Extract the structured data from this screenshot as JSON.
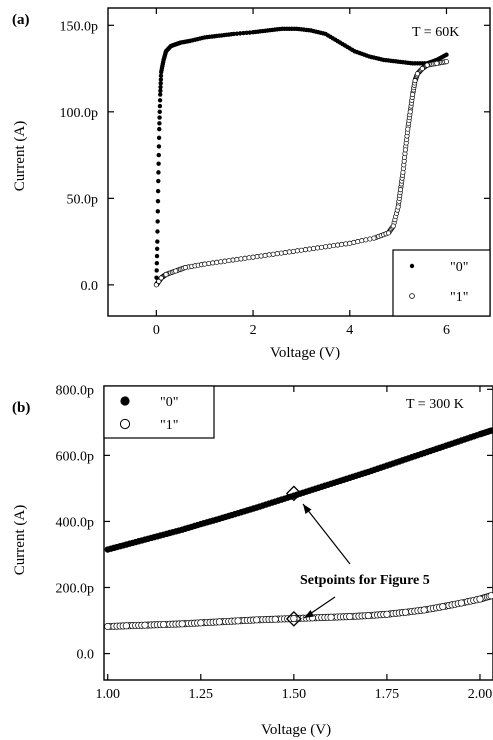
{
  "chart_data": [
    {
      "type": "scatter",
      "panel_label": "(a)",
      "annotation": "T = 60K",
      "xlabel": "Voltage (V)",
      "ylabel": "Current (A)",
      "xlim": [
        -1.0,
        6.9
      ],
      "ylim": [
        -18,
        160
      ],
      "x_ticks": [
        0,
        2,
        4,
        6
      ],
      "x_tick_labels": [
        "0",
        "2",
        "4",
        "6"
      ],
      "y_ticks": [
        0,
        50,
        100,
        150
      ],
      "y_tick_labels": [
        "0.0",
        "50.0p",
        "100.0p",
        "150.0p"
      ],
      "grid": false,
      "legend_position": "bottom-right",
      "series": [
        {
          "name": "\"0\"",
          "marker": "filled",
          "x": [
            0.0,
            0.02,
            0.04,
            0.06,
            0.08,
            0.1,
            0.15,
            0.2,
            0.3,
            0.4,
            0.5,
            0.7,
            1.0,
            1.3,
            1.6,
            2.0,
            2.3,
            2.6,
            2.9,
            3.2,
            3.5,
            3.8,
            4.1,
            4.4,
            4.7,
            5.0,
            5.3,
            5.6,
            5.8,
            6.0
          ],
          "y": [
            0,
            25,
            60,
            90,
            110,
            123,
            130,
            135,
            138,
            139,
            140,
            141,
            143,
            144,
            145,
            146,
            147,
            148,
            148,
            147,
            145,
            140,
            135,
            132,
            130,
            129,
            128,
            128,
            130,
            133
          ]
        },
        {
          "name": "\"1\"",
          "marker": "open",
          "x": [
            0.0,
            0.05,
            0.1,
            0.2,
            0.4,
            0.6,
            1.0,
            1.5,
            2.0,
            2.5,
            3.0,
            3.5,
            4.0,
            4.5,
            4.8,
            4.9,
            5.0,
            5.05,
            5.1,
            5.15,
            5.2,
            5.25,
            5.3,
            5.35,
            5.4,
            5.5,
            5.6,
            5.8,
            6.0
          ],
          "y": [
            0,
            2,
            4,
            6,
            8,
            10,
            12,
            14,
            16,
            18,
            20,
            22,
            24,
            27,
            30,
            34,
            45,
            55,
            65,
            78,
            90,
            100,
            110,
            118,
            122,
            125,
            127,
            128,
            129
          ]
        }
      ]
    },
    {
      "type": "scatter",
      "panel_label": "(b)",
      "annotation": "T = 300 K",
      "callout": "Setpoints for Figure 5",
      "xlabel": "Voltage (V)",
      "ylabel": "Current (A)",
      "xlim": [
        0.99,
        2.035
      ],
      "ylim": [
        -80,
        810
      ],
      "x_ticks": [
        1.0,
        1.25,
        1.5,
        1.75,
        2.0
      ],
      "x_tick_labels": [
        "1.00",
        "1.25",
        "1.50",
        "1.75",
        "2.00"
      ],
      "y_ticks": [
        0,
        200,
        400,
        600,
        800
      ],
      "y_tick_labels": [
        "0.0",
        "200.0p",
        "400.0p",
        "600.0p",
        "800.0p"
      ],
      "grid": false,
      "legend_position": "top-left",
      "series": [
        {
          "name": "\"0\"",
          "marker": "filled",
          "x": [
            1.0,
            1.05,
            1.1,
            1.15,
            1.2,
            1.25,
            1.3,
            1.35,
            1.4,
            1.45,
            1.5,
            1.55,
            1.6,
            1.65,
            1.7,
            1.75,
            1.8,
            1.85,
            1.9,
            1.95,
            2.0,
            2.03
          ],
          "y": [
            315,
            330,
            345,
            360,
            375,
            392,
            408,
            425,
            442,
            460,
            478,
            496,
            514,
            532,
            550,
            569,
            588,
            607,
            626,
            645,
            664,
            675
          ]
        },
        {
          "name": "\"1\"",
          "marker": "open",
          "x": [
            1.0,
            1.05,
            1.1,
            1.15,
            1.2,
            1.25,
            1.3,
            1.35,
            1.4,
            1.45,
            1.5,
            1.55,
            1.6,
            1.65,
            1.7,
            1.75,
            1.8,
            1.85,
            1.9,
            1.95,
            2.0,
            2.03
          ],
          "y": [
            82,
            84,
            86,
            88,
            90,
            93,
            96,
            99,
            102,
            104,
            106,
            108,
            110,
            112,
            115,
            119,
            125,
            132,
            142,
            153,
            165,
            175
          ]
        }
      ],
      "setpoints": [
        {
          "x": 1.5,
          "y": 485
        },
        {
          "x": 1.5,
          "y": 105
        }
      ]
    }
  ]
}
